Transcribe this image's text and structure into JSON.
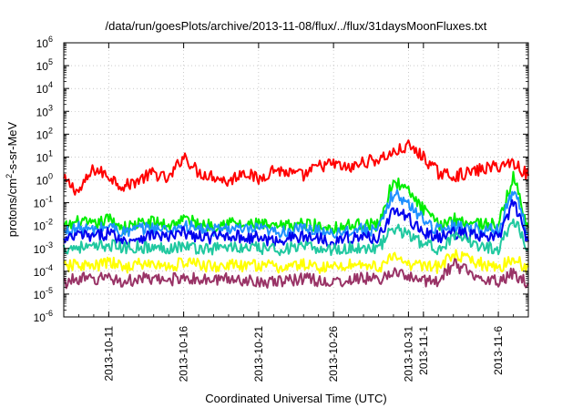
{
  "chart_data": {
    "type": "line",
    "title": "/data/run/goesPlots/archive/2013-11-08/flux/../flux/31daysMoonFluxes.txt",
    "xlabel": "Coordinated Universal Time (UTC)",
    "ylabel": {
      "base": "protons/cm",
      "sup": "2",
      "rest": "-s-sr-MeV"
    },
    "y_scale": "log",
    "ylim": [
      1e-06,
      1000000.0
    ],
    "y_ticks": [
      {
        "base": "10",
        "exp": "-6",
        "value": 1e-06
      },
      {
        "base": "10",
        "exp": "-5",
        "value": 1e-05
      },
      {
        "base": "10",
        "exp": "-4",
        "value": 0.0001
      },
      {
        "base": "10",
        "exp": "-3",
        "value": 0.001
      },
      {
        "base": "10",
        "exp": "-2",
        "value": 0.01
      },
      {
        "base": "10",
        "exp": "-1",
        "value": 0.1
      },
      {
        "base": "10",
        "exp": "0",
        "value": 1
      },
      {
        "base": "10",
        "exp": "1",
        "value": 10
      },
      {
        "base": "10",
        "exp": "2",
        "value": 100
      },
      {
        "base": "10",
        "exp": "3",
        "value": 1000
      },
      {
        "base": "10",
        "exp": "4",
        "value": 10000
      },
      {
        "base": "10",
        "exp": "5",
        "value": 100000
      },
      {
        "base": "10",
        "exp": "6",
        "value": 1000000
      }
    ],
    "xlim": [
      "2013-10-08",
      "2013-11-08"
    ],
    "x_ticks": [
      {
        "label": "2013-10-11",
        "date": "2013-10-11"
      },
      {
        "label": "2013-10-16",
        "date": "2013-10-16"
      },
      {
        "label": "2013-10-21",
        "date": "2013-10-21"
      },
      {
        "label": "2013-10-26",
        "date": "2013-10-26"
      },
      {
        "label": "2013-10-31",
        "date": "2013-10-31"
      },
      {
        "label": "2013-11-1",
        "date": "2013-11-01"
      },
      {
        "label": "2013-11-6",
        "date": "2013-11-06"
      }
    ],
    "grid": true,
    "series": [
      {
        "color": "#ff0000",
        "x": [
          "2013-10-08",
          "2013-10-09",
          "2013-10-10",
          "2013-10-11",
          "2013-10-12",
          "2013-10-13",
          "2013-10-14",
          "2013-10-15",
          "2013-10-16",
          "2013-10-17",
          "2013-10-18",
          "2013-10-19",
          "2013-10-20",
          "2013-10-21",
          "2013-10-22",
          "2013-10-23",
          "2013-10-24",
          "2013-10-25",
          "2013-10-26",
          "2013-10-27",
          "2013-10-28",
          "2013-10-29",
          "2013-10-30",
          "2013-10-31",
          "2013-11-01",
          "2013-11-02",
          "2013-11-03",
          "2013-11-04",
          "2013-11-05",
          "2013-11-06",
          "2013-11-07",
          "2013-11-08"
        ],
        "y": [
          1.0,
          0.3,
          3.0,
          1.5,
          0.5,
          1.0,
          2.0,
          1.0,
          12,
          2.0,
          1.5,
          0.8,
          2.5,
          1.0,
          3.0,
          2.0,
          1.5,
          4.0,
          5.0,
          3.0,
          6.0,
          8.0,
          15,
          30,
          10,
          2.0,
          1.5,
          2.0,
          3.0,
          4.0,
          6.0,
          1.5
        ]
      },
      {
        "color": "#00ee00",
        "x": [
          "2013-10-08",
          "2013-10-09",
          "2013-10-10",
          "2013-10-11",
          "2013-10-12",
          "2013-10-13",
          "2013-10-14",
          "2013-10-15",
          "2013-10-16",
          "2013-10-17",
          "2013-10-18",
          "2013-10-19",
          "2013-10-20",
          "2013-10-21",
          "2013-10-22",
          "2013-10-23",
          "2013-10-24",
          "2013-10-25",
          "2013-10-26",
          "2013-10-27",
          "2013-10-28",
          "2013-10-29",
          "2013-10-30",
          "2013-10-31",
          "2013-11-01",
          "2013-11-02",
          "2013-11-03",
          "2013-11-04",
          "2013-11-05",
          "2013-11-06",
          "2013-11-07",
          "2013-11-08"
        ],
        "y": [
          0.008,
          0.015,
          0.01,
          0.02,
          0.008,
          0.012,
          0.015,
          0.01,
          0.02,
          0.012,
          0.01,
          0.015,
          0.01,
          0.012,
          0.008,
          0.01,
          0.012,
          0.01,
          0.008,
          0.01,
          0.012,
          0.01,
          1.0,
          0.3,
          0.05,
          0.01,
          0.02,
          0.015,
          0.012,
          0.01,
          1.5,
          0.008
        ]
      },
      {
        "color": "#1e90ff",
        "x": [
          "2013-10-08",
          "2013-10-09",
          "2013-10-10",
          "2013-10-11",
          "2013-10-12",
          "2013-10-13",
          "2013-10-14",
          "2013-10-15",
          "2013-10-16",
          "2013-10-17",
          "2013-10-18",
          "2013-10-19",
          "2013-10-20",
          "2013-10-21",
          "2013-10-22",
          "2013-10-23",
          "2013-10-24",
          "2013-10-25",
          "2013-10-26",
          "2013-10-27",
          "2013-10-28",
          "2013-10-29",
          "2013-10-30",
          "2013-10-31",
          "2013-11-01",
          "2013-11-02",
          "2013-11-03",
          "2013-11-04",
          "2013-11-05",
          "2013-11-06",
          "2013-11-07",
          "2013-11-08"
        ],
        "y": [
          0.005,
          0.008,
          0.006,
          0.01,
          0.005,
          0.007,
          0.008,
          0.006,
          0.01,
          0.007,
          0.006,
          0.008,
          0.006,
          0.007,
          0.005,
          0.006,
          0.007,
          0.006,
          0.005,
          0.006,
          0.007,
          0.006,
          0.3,
          0.08,
          0.02,
          0.006,
          0.01,
          0.008,
          0.007,
          0.006,
          0.4,
          0.005
        ]
      },
      {
        "color": "#0000ee",
        "x": [
          "2013-10-08",
          "2013-10-09",
          "2013-10-10",
          "2013-10-11",
          "2013-10-12",
          "2013-10-13",
          "2013-10-14",
          "2013-10-15",
          "2013-10-16",
          "2013-10-17",
          "2013-10-18",
          "2013-10-19",
          "2013-10-20",
          "2013-10-21",
          "2013-10-22",
          "2013-10-23",
          "2013-10-24",
          "2013-10-25",
          "2013-10-26",
          "2013-10-27",
          "2013-10-28",
          "2013-10-29",
          "2013-10-30",
          "2013-10-31",
          "2013-11-01",
          "2013-11-02",
          "2013-11-03",
          "2013-11-04",
          "2013-11-05",
          "2013-11-06",
          "2013-11-07",
          "2013-11-08"
        ],
        "y": [
          0.002,
          0.004,
          0.003,
          0.005,
          0.002,
          0.003,
          0.004,
          0.003,
          0.005,
          0.003,
          0.003,
          0.004,
          0.003,
          0.003,
          0.002,
          0.003,
          0.003,
          0.003,
          0.002,
          0.003,
          0.003,
          0.003,
          0.05,
          0.02,
          0.005,
          0.003,
          0.005,
          0.004,
          0.003,
          0.003,
          0.1,
          0.002
        ]
      },
      {
        "color": "#20c8a0",
        "x": [
          "2013-10-08",
          "2013-10-09",
          "2013-10-10",
          "2013-10-11",
          "2013-10-12",
          "2013-10-13",
          "2013-10-14",
          "2013-10-15",
          "2013-10-16",
          "2013-10-17",
          "2013-10-18",
          "2013-10-19",
          "2013-10-20",
          "2013-10-21",
          "2013-10-22",
          "2013-10-23",
          "2013-10-24",
          "2013-10-25",
          "2013-10-26",
          "2013-10-27",
          "2013-10-28",
          "2013-10-29",
          "2013-10-30",
          "2013-10-31",
          "2013-11-01",
          "2013-11-02",
          "2013-11-03",
          "2013-11-04",
          "2013-11-05",
          "2013-11-06",
          "2013-11-07",
          "2013-11-08"
        ],
        "y": [
          0.001,
          0.0012,
          0.001,
          0.0015,
          0.001,
          0.0012,
          0.001,
          0.0011,
          0.0013,
          0.001,
          0.001,
          0.0012,
          0.001,
          0.001,
          0.0009,
          0.001,
          0.0011,
          0.001,
          0.0009,
          0.001,
          0.0011,
          0.001,
          0.008,
          0.004,
          0.0015,
          0.001,
          0.003,
          0.002,
          0.0012,
          0.001,
          0.02,
          0.001
        ]
      },
      {
        "color": "#ffff00",
        "x": [
          "2013-10-08",
          "2013-10-09",
          "2013-10-10",
          "2013-10-11",
          "2013-10-12",
          "2013-10-13",
          "2013-10-14",
          "2013-10-15",
          "2013-10-16",
          "2013-10-17",
          "2013-10-18",
          "2013-10-19",
          "2013-10-20",
          "2013-10-21",
          "2013-10-22",
          "2013-10-23",
          "2013-10-24",
          "2013-10-25",
          "2013-10-26",
          "2013-10-27",
          "2013-10-28",
          "2013-10-29",
          "2013-10-30",
          "2013-10-31",
          "2013-11-01",
          "2013-11-02",
          "2013-11-03",
          "2013-11-04",
          "2013-11-05",
          "2013-11-06",
          "2013-11-07",
          "2013-11-08"
        ],
        "y": [
          0.00015,
          0.0002,
          0.00015,
          0.00025,
          0.00015,
          0.0002,
          0.0002,
          0.00015,
          0.00025,
          0.0002,
          0.00015,
          0.0002,
          0.00015,
          0.0002,
          0.00015,
          0.00015,
          0.0002,
          0.00015,
          0.00015,
          0.0002,
          0.0002,
          0.00015,
          0.0004,
          0.0002,
          0.0002,
          0.00015,
          0.0005,
          0.0003,
          0.0002,
          0.00015,
          0.0003,
          0.00015
        ]
      },
      {
        "color": "#993366",
        "x": [
          "2013-10-08",
          "2013-10-09",
          "2013-10-10",
          "2013-10-11",
          "2013-10-12",
          "2013-10-13",
          "2013-10-14",
          "2013-10-15",
          "2013-10-16",
          "2013-10-17",
          "2013-10-18",
          "2013-10-19",
          "2013-10-20",
          "2013-10-21",
          "2013-10-22",
          "2013-10-23",
          "2013-10-24",
          "2013-10-25",
          "2013-10-26",
          "2013-10-27",
          "2013-10-28",
          "2013-10-29",
          "2013-10-30",
          "2013-10-31",
          "2013-11-01",
          "2013-11-02",
          "2013-11-03",
          "2013-11-04",
          "2013-11-05",
          "2013-11-06",
          "2013-11-07",
          "2013-11-08"
        ],
        "y": [
          3e-05,
          5e-05,
          4e-05,
          6e-05,
          3e-05,
          5e-05,
          4e-05,
          4e-05,
          6e-05,
          4e-05,
          4e-05,
          5e-05,
          4e-05,
          4e-05,
          3e-05,
          4e-05,
          5e-05,
          4e-05,
          3e-05,
          4e-05,
          5e-05,
          4e-05,
          0.0001,
          5e-05,
          4e-05,
          4e-05,
          0.0002,
          0.0001,
          5e-05,
          4e-05,
          8e-05,
          3e-05
        ]
      }
    ]
  }
}
